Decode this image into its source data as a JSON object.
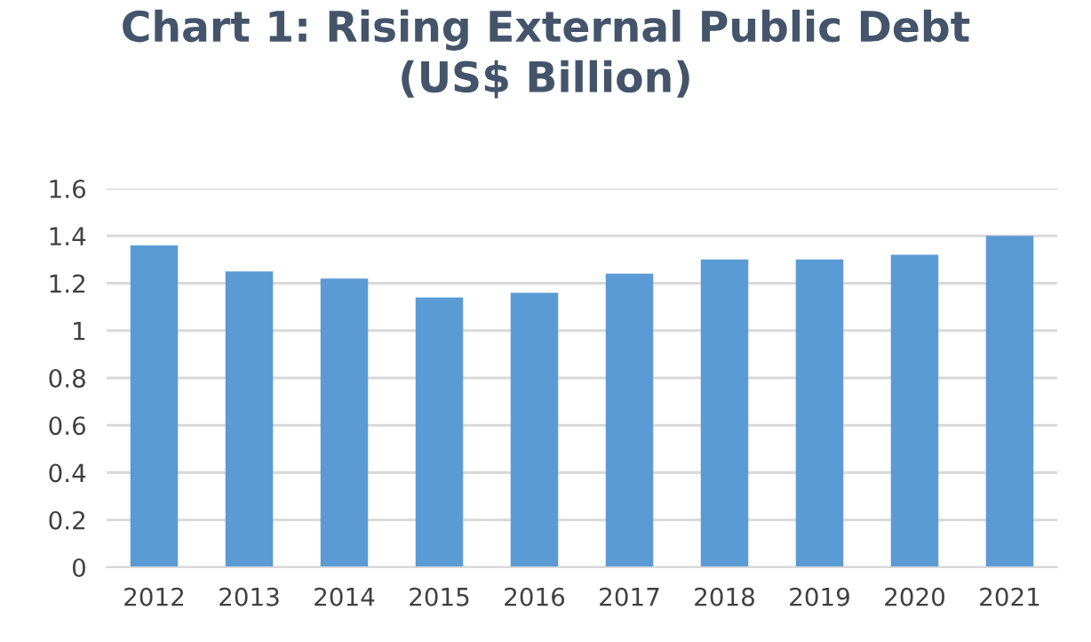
{
  "chart_data": {
    "type": "bar",
    "title": "Chart 1: Rising External Public Debt\n(US$ Billion)",
    "categories": [
      "2012",
      "2013",
      "2014",
      "2015",
      "2016",
      "2017",
      "2018",
      "2019",
      "2020",
      "2021"
    ],
    "values": [
      1.36,
      1.25,
      1.22,
      1.14,
      1.16,
      1.24,
      1.3,
      1.3,
      1.32,
      1.4
    ],
    "color": "#5b9bd5",
    "ylim": [
      0,
      1.6
    ],
    "yticks": [
      {
        "value": 0,
        "label": "0"
      },
      {
        "value": 0.2,
        "label": "0.2"
      },
      {
        "value": 0.4,
        "label": "0.4"
      },
      {
        "value": 0.6,
        "label": "0.6"
      },
      {
        "value": 0.8,
        "label": "0.8"
      },
      {
        "value": 1,
        "label": "1"
      },
      {
        "value": 1.2,
        "label": "1.2"
      },
      {
        "value": 1.4,
        "label": "1.4"
      },
      {
        "value": 1.6,
        "label": "1.6"
      }
    ],
    "grid": "y"
  }
}
